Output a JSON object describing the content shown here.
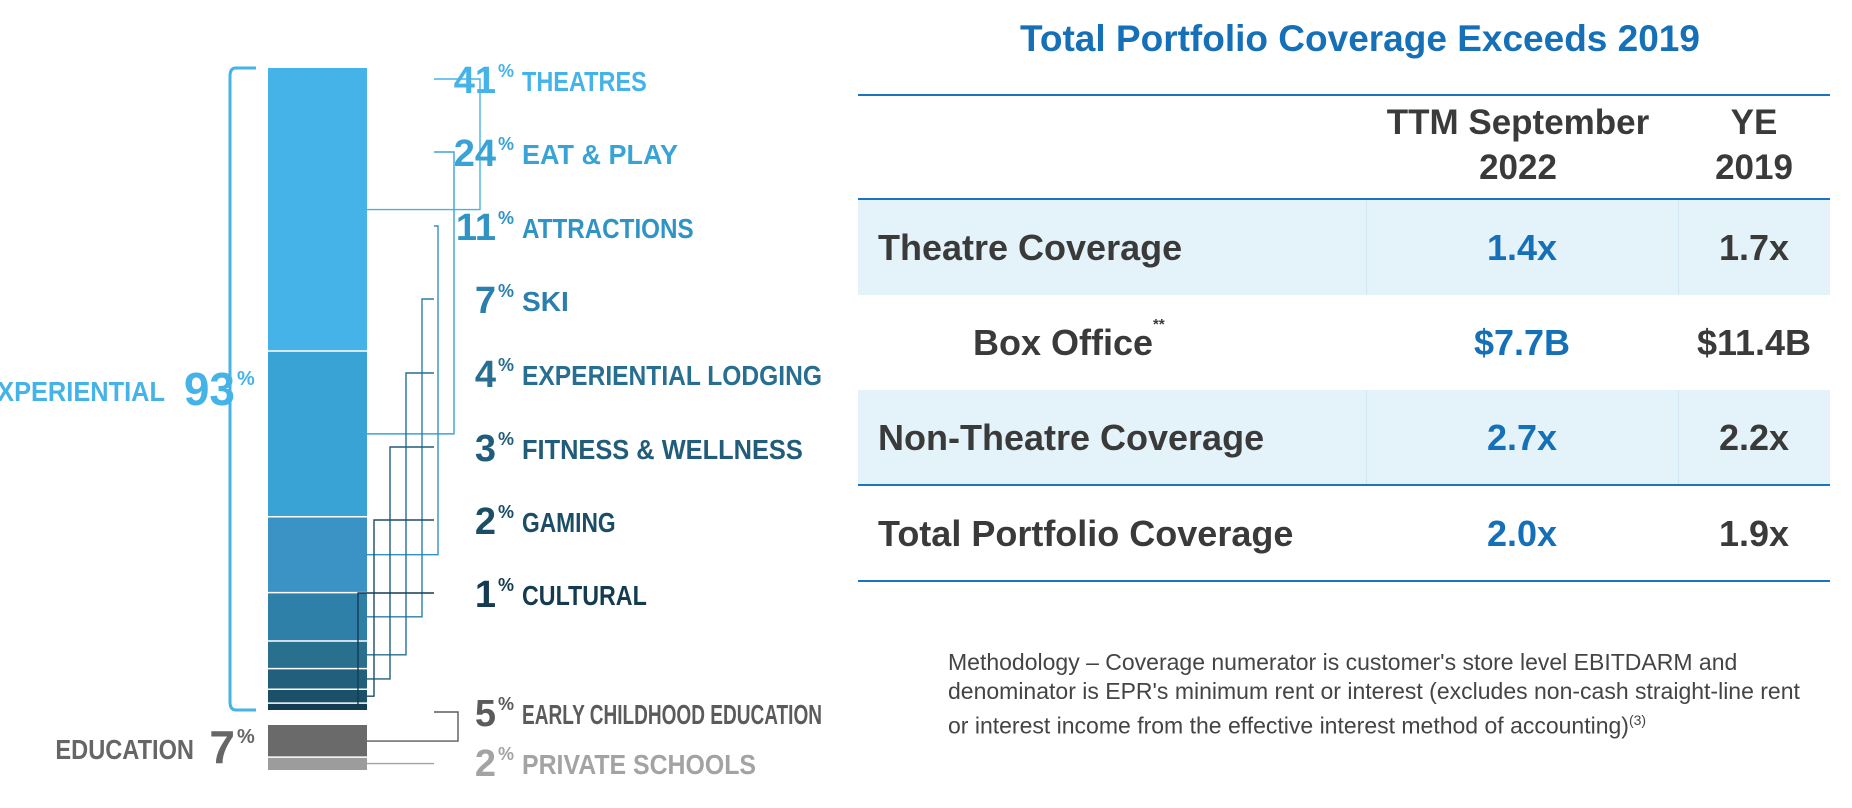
{
  "chart_data": {
    "type": "bar",
    "subtype": "stacked-100",
    "groups": [
      {
        "name": "EXPERIENTIAL",
        "value": 93,
        "unit": "%"
      },
      {
        "name": "EDUCATION",
        "value": 7,
        "unit": "%"
      }
    ],
    "series": [
      {
        "name": "THEATRES",
        "value": 41,
        "group": "EXPERIENTIAL",
        "color": "#45b3e7"
      },
      {
        "name": "EAT & PLAY",
        "value": 24,
        "group": "EXPERIENTIAL",
        "color": "#3aa3d6"
      },
      {
        "name": "ATTRACTIONS",
        "value": 11,
        "group": "EXPERIENTIAL",
        "color": "#3a93c4"
      },
      {
        "name": "SKI",
        "value": 7,
        "group": "EXPERIENTIAL",
        "color": "#2f80a9"
      },
      {
        "name": "EXPERIENTIAL LODGING",
        "value": 4,
        "group": "EXPERIENTIAL",
        "color": "#29708f"
      },
      {
        "name": "FITNESS & WELLNESS",
        "value": 3,
        "group": "EXPERIENTIAL",
        "color": "#225f7c"
      },
      {
        "name": "GAMING",
        "value": 2,
        "group": "EXPERIENTIAL",
        "color": "#1c4f68"
      },
      {
        "name": "CULTURAL",
        "value": 1,
        "group": "EXPERIENTIAL",
        "color": "#143c52"
      },
      {
        "name": "EARLY CHILDHOOD EDUCATION",
        "value": 5,
        "group": "EDUCATION",
        "color": "#6a6a6a"
      },
      {
        "name": "PRIVATE SCHOOLS",
        "value": 2,
        "group": "EDUCATION",
        "color": "#9c9c9c"
      }
    ],
    "label_colors": [
      "#45b3e7",
      "#3aa3d6",
      "#2f93c4",
      "#2a7fac",
      "#276e91",
      "#215d7a",
      "#1b4d66",
      "#143b50",
      "#5b5b5b",
      "#a3a3a3"
    ],
    "group_label_colors": [
      "#45b3e7",
      "#666666"
    ],
    "percent_symbol": "%"
  },
  "table": {
    "title": "Total Portfolio Coverage Exceeds 2019",
    "col1_line1": "TTM September",
    "col1_line2": "2022",
    "col2_line1": "YE",
    "col2_line2": "2019",
    "rows": [
      {
        "label": "Theatre Coverage",
        "note": "",
        "ttm": "1.4x",
        "ye": "1.7x"
      },
      {
        "label": "Box Office",
        "note": "**",
        "ttm": "$7.7B",
        "ye": "$11.4B"
      },
      {
        "label": "Non-Theatre Coverage",
        "note": "",
        "ttm": "2.7x",
        "ye": "2.2x"
      },
      {
        "label": "Total Portfolio Coverage",
        "note": "",
        "ttm": "2.0x",
        "ye": "1.9x"
      }
    ],
    "colors": {
      "accent": "#1570b7",
      "row_shade": "#e4f2fa",
      "rule": "#1a75bc",
      "text": "#3a3a3a"
    }
  },
  "methodology": {
    "text": "Methodology – Coverage numerator is customer's store level EBITDARM and denominator is EPR's minimum rent or interest (excludes non-cash straight-line rent or interest income from the effective interest method of accounting)",
    "footnote": "(3)"
  }
}
